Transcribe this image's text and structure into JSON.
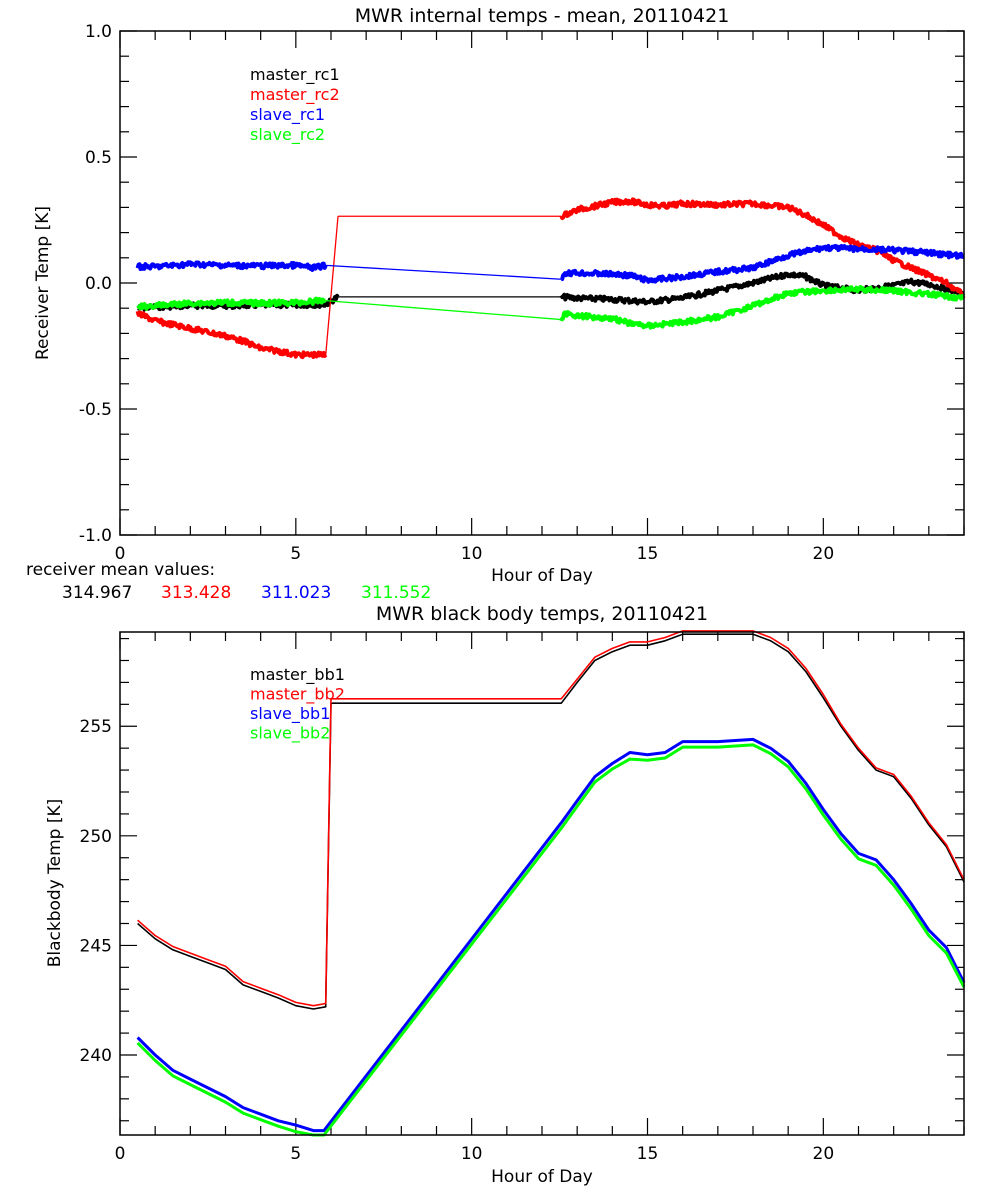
{
  "chart_data": [
    {
      "type": "line",
      "title": "MWR internal temps - mean, 20110421",
      "xlabel": "Hour of Day",
      "ylabel": "Receiver Temp [K]",
      "xlim": [
        0,
        24
      ],
      "ylim": [
        -1.0,
        1.0
      ],
      "xticks": [
        0,
        5,
        10,
        15,
        20
      ],
      "yticks": [
        -1.0,
        -0.5,
        0.0,
        0.5,
        1.0
      ],
      "ytick_labels": [
        "-1.0",
        "-0.5",
        "0.0",
        "0.5",
        "1.0"
      ],
      "legend_position": "top-left",
      "series": [
        {
          "name": "master_rc1",
          "color": "#000000",
          "noisy": true,
          "x": [
            0.5,
            1,
            2,
            3,
            4,
            5,
            5.85,
            6.2,
            12.55,
            13,
            14,
            15,
            16,
            17,
            18,
            19,
            19.5,
            20,
            21,
            22,
            22.5,
            23,
            24
          ],
          "y": [
            -0.1,
            -0.095,
            -0.09,
            -0.09,
            -0.088,
            -0.087,
            -0.085,
            -0.055,
            -0.055,
            -0.06,
            -0.065,
            -0.075,
            -0.06,
            -0.03,
            0.0,
            0.035,
            0.025,
            -0.01,
            -0.03,
            -0.01,
            0.005,
            -0.005,
            -0.04
          ]
        },
        {
          "name": "master_rc2",
          "color": "#ff0000",
          "noisy": true,
          "x": [
            0.5,
            1,
            2,
            3,
            3.5,
            4,
            4.5,
            5,
            5.5,
            5.85,
            6.2,
            12.55,
            13,
            14,
            14.5,
            15,
            15.5,
            16,
            17,
            18,
            19,
            19.5,
            20,
            20.5,
            21,
            21.5,
            22,
            22.5,
            23,
            23.5,
            24
          ],
          "y": [
            -0.12,
            -0.15,
            -0.18,
            -0.21,
            -0.23,
            -0.26,
            -0.27,
            -0.285,
            -0.285,
            -0.285,
            0.265,
            0.265,
            0.29,
            0.32,
            0.325,
            0.31,
            0.305,
            0.315,
            0.31,
            0.315,
            0.3,
            0.27,
            0.23,
            0.185,
            0.15,
            0.13,
            0.09,
            0.06,
            0.03,
            0.0,
            -0.05
          ]
        },
        {
          "name": "slave_rc1",
          "color": "#0000ff",
          "noisy": true,
          "x": [
            0.5,
            1,
            2,
            3,
            4,
            5,
            5.5,
            5.85,
            12.55,
            12.65,
            13,
            14,
            14.5,
            15,
            16,
            17,
            18,
            19,
            20,
            21,
            22,
            23,
            24
          ],
          "y": [
            0.065,
            0.065,
            0.075,
            0.07,
            0.068,
            0.07,
            0.06,
            0.07,
            0.015,
            0.04,
            0.04,
            0.035,
            0.03,
            0.01,
            0.025,
            0.045,
            0.06,
            0.11,
            0.14,
            0.135,
            0.13,
            0.12,
            0.105
          ]
        },
        {
          "name": "slave_rc2",
          "color": "#00ff00",
          "noisy": true,
          "x": [
            0.5,
            1,
            2,
            3,
            4,
            5,
            5.85,
            12.55,
            12.65,
            13,
            14,
            14.5,
            15,
            16,
            17,
            18,
            19,
            20,
            21,
            22,
            23,
            24
          ],
          "y": [
            -0.095,
            -0.09,
            -0.08,
            -0.078,
            -0.08,
            -0.078,
            -0.07,
            -0.145,
            -0.12,
            -0.13,
            -0.14,
            -0.16,
            -0.17,
            -0.155,
            -0.135,
            -0.09,
            -0.04,
            -0.03,
            -0.025,
            -0.03,
            -0.045,
            -0.06
          ]
        }
      ]
    },
    {
      "type": "line",
      "title": "MWR black body temps, 20110421",
      "xlabel": "Hour of Day",
      "ylabel": "Blackbody Temp [K]",
      "xlim": [
        0,
        24
      ],
      "ylim": [
        236.35,
        259.3
      ],
      "xticks": [
        0,
        5,
        10,
        15,
        20
      ],
      "yticks": [
        240,
        245,
        250,
        255
      ],
      "ytick_labels": [
        "240",
        "245",
        "250",
        "255"
      ],
      "legend_position": "top-left",
      "series": [
        {
          "name": "master_bb1",
          "color": "#000000",
          "noisy": false,
          "x": [
            0.5,
            1,
            1.5,
            2,
            2.5,
            3,
            3.5,
            4,
            4.5,
            5,
            5.5,
            5.85,
            6.0,
            12.55,
            13,
            13.5,
            14,
            14.5,
            15,
            15.5,
            16,
            17,
            18,
            18.5,
            19,
            19.5,
            20,
            20.5,
            21,
            21.5,
            22,
            22.5,
            23,
            23.5,
            24
          ],
          "y": [
            246.0,
            245.3,
            244.8,
            244.5,
            244.2,
            243.9,
            243.2,
            242.9,
            242.6,
            242.25,
            242.1,
            242.2,
            256.05,
            256.05,
            257.0,
            258.0,
            258.4,
            258.7,
            258.7,
            258.9,
            259.2,
            259.2,
            259.2,
            258.9,
            258.4,
            257.5,
            256.3,
            255.0,
            253.9,
            253.0,
            252.7,
            251.7,
            250.5,
            249.5,
            247.9
          ]
        },
        {
          "name": "master_bb2",
          "color": "#ff0000",
          "noisy": false,
          "x": [
            0.5,
            1,
            1.5,
            2,
            2.5,
            3,
            3.5,
            4,
            4.5,
            5,
            5.5,
            5.85,
            6.0,
            12.55,
            13,
            13.5,
            14,
            14.5,
            15,
            15.5,
            16,
            17,
            18,
            18.5,
            19,
            19.5,
            20,
            20.5,
            21,
            21.5,
            22,
            22.5,
            23,
            23.5,
            24
          ],
          "y": [
            246.15,
            245.45,
            244.95,
            244.65,
            244.35,
            244.05,
            243.35,
            243.05,
            242.75,
            242.4,
            242.25,
            242.35,
            256.25,
            256.25,
            257.15,
            258.15,
            258.55,
            258.85,
            258.85,
            259.05,
            259.35,
            259.35,
            259.35,
            259.05,
            258.55,
            257.65,
            256.45,
            255.1,
            254.0,
            253.1,
            252.8,
            251.8,
            250.6,
            249.6,
            248.0
          ]
        },
        {
          "name": "slave_bb1",
          "color": "#0000ff",
          "noisy": false,
          "x": [
            0.5,
            1,
            1.5,
            2,
            2.5,
            3,
            3.5,
            4,
            4.5,
            5,
            5.5,
            5.8,
            12.55,
            13,
            13.5,
            14,
            14.5,
            15,
            15.5,
            16,
            17,
            18,
            18.5,
            19,
            19.5,
            20,
            20.5,
            21,
            21.5,
            22,
            22.5,
            23,
            23.5,
            24
          ],
          "y": [
            240.8,
            240.0,
            239.3,
            238.9,
            238.5,
            238.1,
            237.6,
            237.3,
            237.0,
            236.8,
            236.55,
            236.55,
            250.6,
            251.6,
            252.7,
            253.3,
            253.8,
            253.7,
            253.8,
            254.3,
            254.3,
            254.4,
            254.0,
            253.4,
            252.4,
            251.2,
            250.1,
            249.2,
            248.9,
            248.0,
            246.9,
            245.7,
            244.9,
            243.3
          ]
        },
        {
          "name": "slave_bb2",
          "color": "#00ff00",
          "noisy": false,
          "x": [
            0.5,
            1,
            1.5,
            2,
            2.5,
            3,
            3.5,
            4,
            4.5,
            5,
            5.5,
            5.8,
            12.55,
            13,
            13.5,
            14,
            14.5,
            15,
            15.5,
            16,
            17,
            18,
            18.5,
            19,
            19.5,
            20,
            20.5,
            21,
            21.5,
            22,
            22.5,
            23,
            23.5,
            24
          ],
          "y": [
            240.55,
            239.75,
            239.05,
            238.65,
            238.25,
            237.85,
            237.35,
            237.05,
            236.75,
            236.5,
            236.35,
            236.35,
            250.35,
            251.35,
            252.45,
            253.05,
            253.5,
            253.45,
            253.55,
            254.05,
            254.05,
            254.15,
            253.75,
            253.15,
            252.15,
            250.95,
            249.85,
            248.95,
            248.65,
            247.75,
            246.65,
            245.45,
            244.65,
            243.1
          ]
        }
      ]
    }
  ],
  "receiver_mean": {
    "label": "receiver mean values:",
    "values": [
      {
        "text": "314.967",
        "color": "#000000"
      },
      {
        "text": "313.428",
        "color": "#ff0000"
      },
      {
        "text": "311.023",
        "color": "#0000ff"
      },
      {
        "text": "311.552",
        "color": "#00ff00"
      }
    ]
  }
}
